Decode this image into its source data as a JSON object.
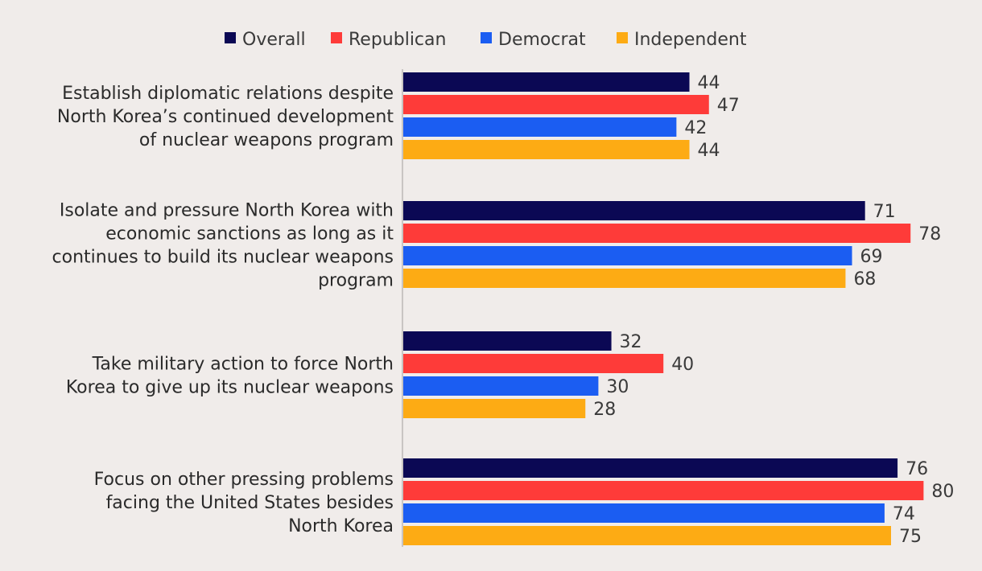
{
  "chart_data": {
    "type": "bar",
    "orientation": "horizontal",
    "title": "",
    "xlabel": "",
    "ylabel": "",
    "xlim": [
      0,
      100
    ],
    "grid": false,
    "legend_position": "top-center",
    "categories": [
      [
        "Establish diplomatic relations despite",
        "North Korea’s continued development",
        "of nuclear weapons program"
      ],
      [
        "Isolate and pressure North Korea with",
        "economic sanctions as long as it",
        "continues to build its nuclear weapons",
        "program"
      ],
      [
        "Take military action to force North",
        "Korea to give up its nuclear weapons"
      ],
      [
        "Focus on other pressing problems",
        "facing the United States besides",
        "North Korea"
      ]
    ],
    "series": [
      {
        "name": "Overall",
        "color": "#0b0854",
        "values": [
          44,
          71,
          32,
          76
        ]
      },
      {
        "name": "Republican",
        "color": "#fe3b39",
        "values": [
          47,
          78,
          40,
          80
        ]
      },
      {
        "name": "Democrat",
        "color": "#1b5df2",
        "values": [
          42,
          69,
          30,
          74
        ]
      },
      {
        "name": "Independent",
        "color": "#fdab14",
        "values": [
          44,
          68,
          28,
          75
        ]
      }
    ]
  }
}
